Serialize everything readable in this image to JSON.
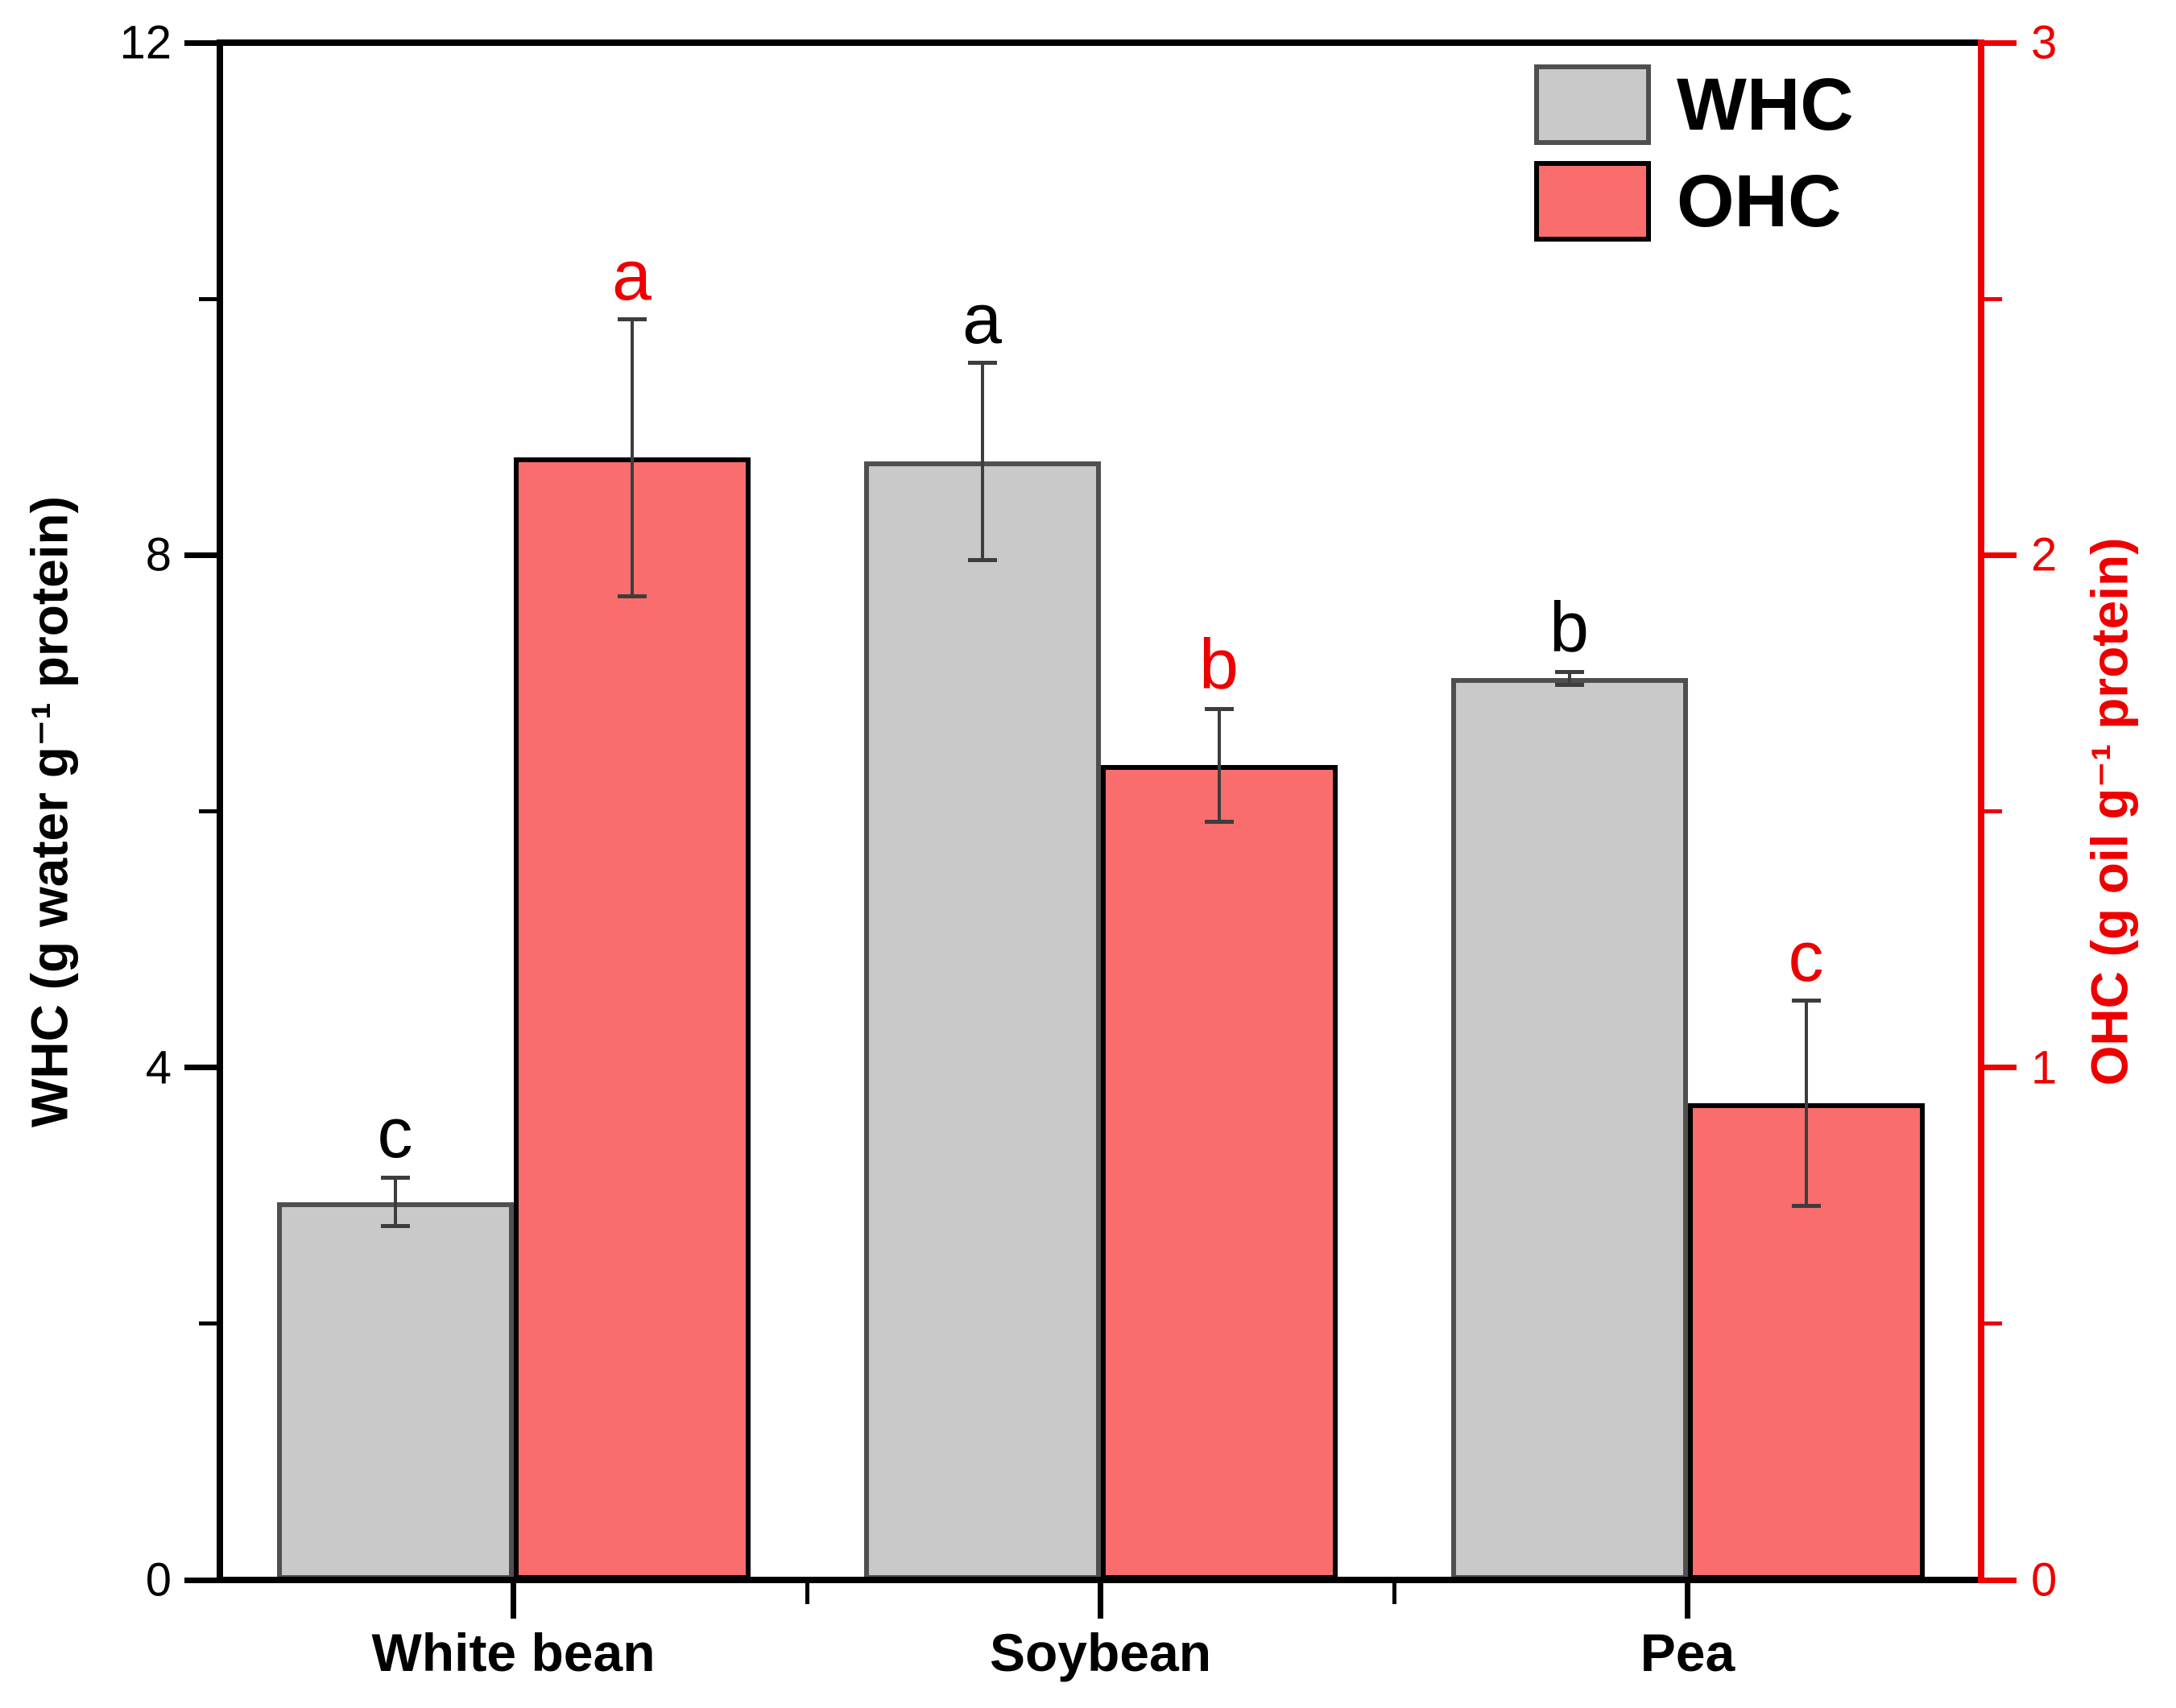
{
  "figure": {
    "background": "#ffffff"
  },
  "chart_data": {
    "type": "bar",
    "title": "",
    "categories": [
      "White bean",
      "Soybean",
      "Pea"
    ],
    "series": [
      {
        "name": "WHC",
        "axis": "left",
        "fill": "#c9c9c9",
        "border": "#4f4f4f",
        "values": [
          2.95,
          8.73,
          7.04
        ],
        "errors": [
          0.19,
          0.77,
          0.05
        ],
        "sig_letters": [
          "c",
          "a",
          "b"
        ],
        "letter_color": "#000000"
      },
      {
        "name": "OHC",
        "axis": "right",
        "fill": "#f96d6d",
        "border": "#000000",
        "values": [
          2.19,
          1.59,
          0.93
        ],
        "errors": [
          0.27,
          0.11,
          0.2
        ],
        "sig_letters": [
          "a",
          "b",
          "c"
        ],
        "letter_color": "#ee0000"
      }
    ],
    "axes": {
      "left": {
        "label": "WHC (g water g⁻¹ protein)",
        "min": 0,
        "max": 12,
        "major_ticks": [
          0,
          4,
          8,
          12
        ],
        "minor_ticks": [
          2,
          6,
          10
        ],
        "color": "#000000"
      },
      "right": {
        "label": "OHC (g oil g⁻¹ protein)",
        "min": 0,
        "max": 3,
        "major_ticks": [
          0,
          1,
          2,
          3
        ],
        "minor_ticks": [
          0.5,
          1.5,
          2.5
        ],
        "color": "#ee0000"
      },
      "bottom": {
        "color": "#000000"
      }
    },
    "legend": {
      "position": "top-right",
      "entries": [
        "WHC",
        "OHC"
      ]
    },
    "error_bar_color": "#3d3d3d",
    "grid": false
  }
}
